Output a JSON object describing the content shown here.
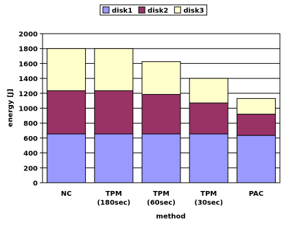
{
  "chart_data": {
    "type": "bar",
    "stacked": true,
    "title": "",
    "xlabel": "method",
    "ylabel": "energy [J]",
    "ylim": [
      0,
      2000
    ],
    "yticks": [
      0,
      200,
      400,
      600,
      800,
      1000,
      1200,
      1400,
      1600,
      1800,
      2000
    ],
    "grid": true,
    "legend_position": "top",
    "categories": [
      [
        "NC"
      ],
      [
        "TPM",
        "(180sec)"
      ],
      [
        "TPM",
        "(60sec)"
      ],
      [
        "TPM",
        "(30sec)"
      ],
      [
        "PAC"
      ]
    ],
    "series": [
      {
        "name": "disk1",
        "color": "#9999ff",
        "values": [
          655,
          655,
          655,
          655,
          635
        ]
      },
      {
        "name": "disk2",
        "color": "#993366",
        "values": [
          580,
          580,
          530,
          415,
          285
        ]
      },
      {
        "name": "disk3",
        "color": "#ffffcc",
        "values": [
          565,
          565,
          440,
          330,
          210
        ]
      }
    ]
  }
}
